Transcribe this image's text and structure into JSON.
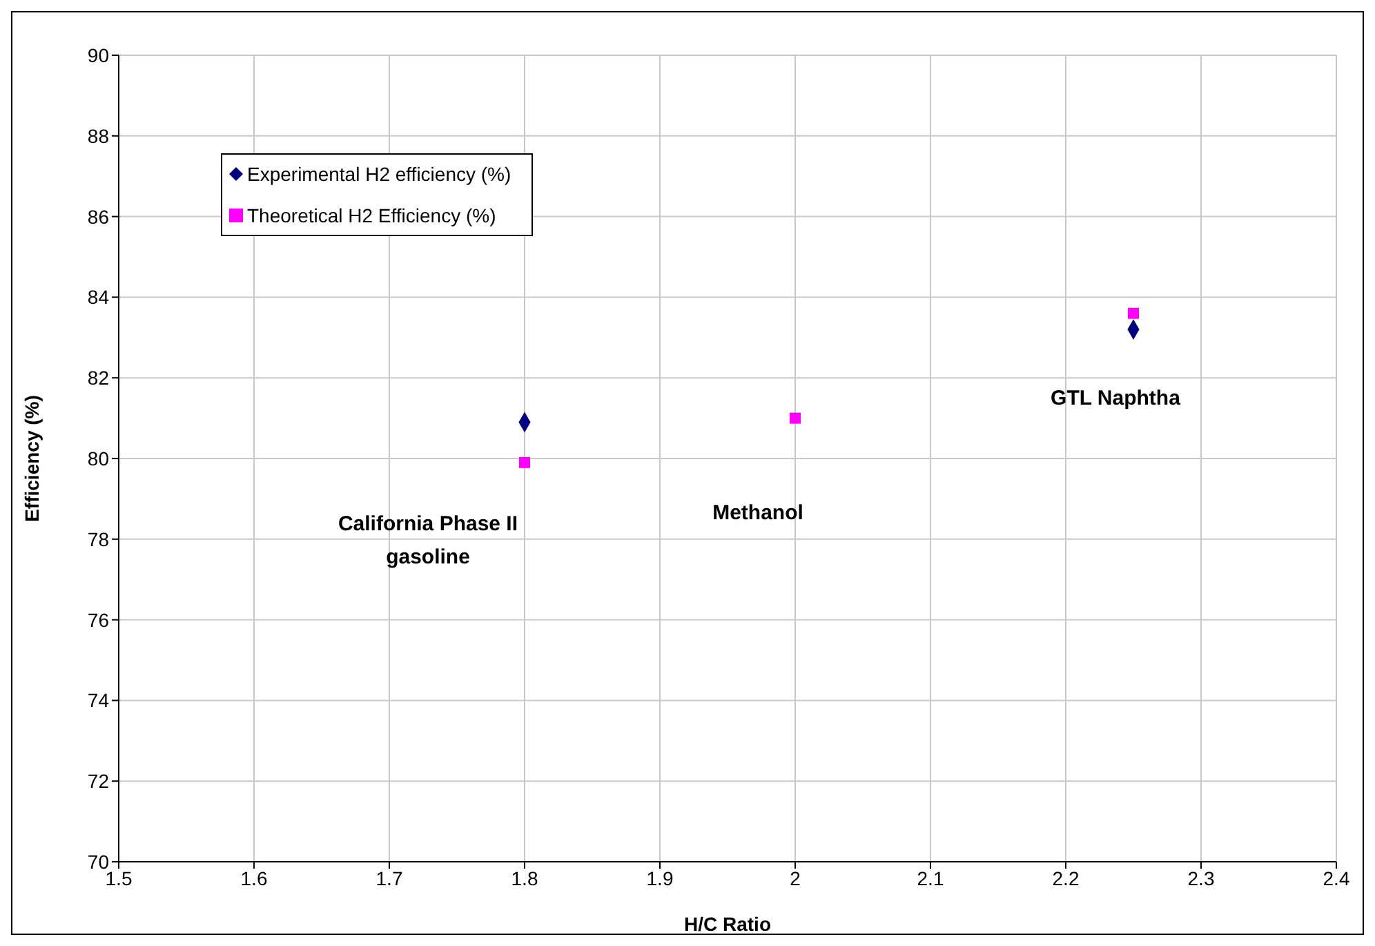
{
  "chart_data": {
    "type": "scatter",
    "xlabel": "H/C Ratio",
    "ylabel": "Efficiency (%)",
    "series": [
      {
        "name": "Experimental H2 efficiency (%)",
        "color": "#000080",
        "marker": "diamond",
        "x": [
          1.8,
          2.25
        ],
        "values": [
          80.9,
          83.2
        ]
      },
      {
        "name": "Theoretical H2 Efficiency (%)",
        "color": "#ff00ff",
        "marker": "square",
        "x": [
          1.8,
          2.0,
          2.25
        ],
        "values": [
          79.9,
          81.0,
          83.6
        ]
      }
    ],
    "xlim": [
      1.5,
      2.4
    ],
    "xticks": [
      1.5,
      1.6,
      1.7,
      1.8,
      1.9,
      2,
      2.1,
      2.2,
      2.3,
      2.4
    ],
    "ylim": [
      70,
      90
    ],
    "yticks": [
      70,
      72,
      74,
      76,
      78,
      80,
      82,
      84,
      86,
      88,
      90
    ],
    "grid": true,
    "legend": "top left",
    "annotations": [
      "California Phase II gasoline",
      "Methanol",
      "GTL Naphtha"
    ]
  }
}
